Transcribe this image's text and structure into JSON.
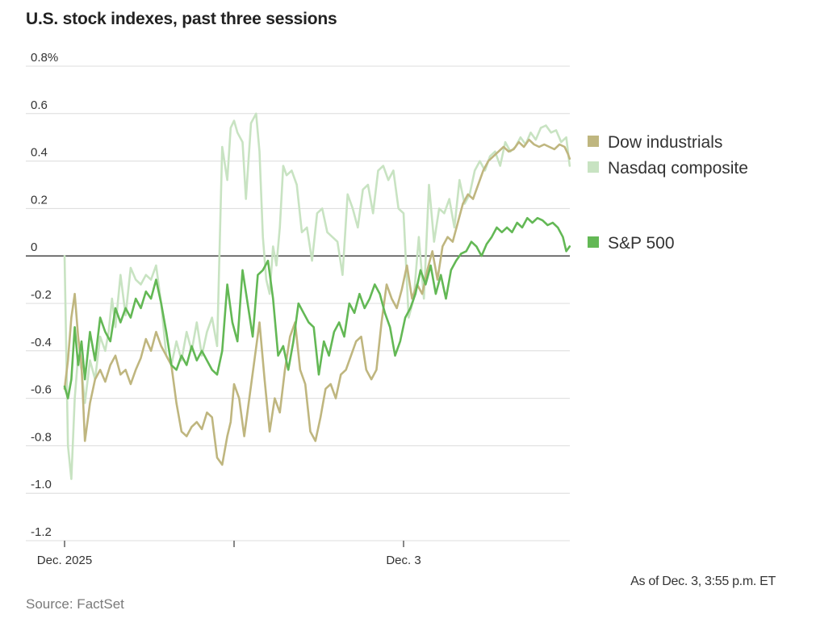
{
  "chart_data": {
    "type": "line",
    "title": "U.S. stock indexes, past three sessions",
    "xlabel": "",
    "ylabel": "",
    "ylim": [
      -1.2,
      0.8
    ],
    "y_ticks": [
      0.8,
      0.6,
      0.4,
      0.2,
      0,
      -0.2,
      -0.4,
      -0.6,
      -0.8,
      -1.0,
      -1.2
    ],
    "y_tick_labels": [
      "0.8%",
      "0.6",
      "0.4",
      "0.2",
      "0",
      "-0.2",
      "-0.4",
      "-0.6",
      "-0.8",
      "-1.0",
      "-1.2"
    ],
    "x_range": [
      0,
      3
    ],
    "x_ticks": [
      0,
      1,
      2
    ],
    "x_tick_labels": [
      "Dec. 2025",
      "",
      "Dec. 3"
    ],
    "grid": true,
    "zero_line": true,
    "legend_position": "right",
    "legend": [
      {
        "name": "Dow industrials",
        "color": "#bfb67f"
      },
      {
        "name": "Nasdaq composite",
        "color": "#c8e3c2"
      },
      {
        "name": "S&P 500",
        "color": "#63b855"
      }
    ],
    "series": [
      {
        "name": "Nasdaq composite",
        "color": "#c8e3c2",
        "x": [
          0,
          0.02,
          0.04,
          0.06,
          0.08,
          0.1,
          0.12,
          0.15,
          0.18,
          0.21,
          0.24,
          0.26,
          0.28,
          0.3,
          0.33,
          0.36,
          0.39,
          0.42,
          0.45,
          0.48,
          0.51,
          0.54,
          0.57,
          0.6,
          0.63,
          0.66,
          0.69,
          0.72,
          0.75,
          0.78,
          0.81,
          0.84,
          0.87,
          0.9,
          0.93,
          0.96,
          0.98,
          1.0,
          1.02,
          1.05,
          1.07,
          1.1,
          1.13,
          1.15,
          1.17,
          1.19,
          1.21,
          1.23,
          1.25,
          1.27,
          1.29,
          1.31,
          1.34,
          1.37,
          1.4,
          1.43,
          1.46,
          1.49,
          1.52,
          1.55,
          1.58,
          1.61,
          1.64,
          1.67,
          1.7,
          1.73,
          1.76,
          1.79,
          1.82,
          1.85,
          1.88,
          1.91,
          1.94,
          1.97,
          2.0,
          2.03,
          2.06,
          2.09,
          2.12,
          2.15,
          2.18,
          2.21,
          2.24,
          2.27,
          2.3,
          2.33,
          2.36,
          2.39,
          2.42,
          2.45,
          2.48,
          2.51,
          2.54,
          2.57,
          2.6,
          2.63,
          2.66,
          2.69,
          2.72,
          2.75,
          2.78,
          2.81,
          2.84,
          2.87,
          2.9,
          2.93,
          2.96,
          2.98
        ],
        "values": [
          0,
          -0.8,
          -0.94,
          -0.6,
          -0.42,
          -0.48,
          -0.62,
          -0.44,
          -0.52,
          -0.34,
          -0.4,
          -0.32,
          -0.18,
          -0.3,
          -0.08,
          -0.25,
          -0.05,
          -0.1,
          -0.12,
          -0.08,
          -0.1,
          -0.04,
          -0.2,
          -0.42,
          -0.46,
          -0.36,
          -0.44,
          -0.32,
          -0.4,
          -0.28,
          -0.42,
          -0.32,
          -0.26,
          -0.38,
          0.46,
          0.32,
          0.54,
          0.57,
          0.52,
          0.48,
          0.24,
          0.56,
          0.6,
          0.44,
          0.08,
          -0.1,
          -0.16,
          0.04,
          -0.04,
          0.12,
          0.38,
          0.34,
          0.36,
          0.3,
          0.1,
          0.12,
          -0.02,
          0.18,
          0.2,
          0.1,
          0.08,
          0.06,
          -0.08,
          0.26,
          0.2,
          0.12,
          0.28,
          0.3,
          0.18,
          0.36,
          0.38,
          0.32,
          0.36,
          0.2,
          0.18,
          -0.26,
          -0.18,
          0.08,
          -0.18,
          0.3,
          0.06,
          0.2,
          0.18,
          0.24,
          0.12,
          0.32,
          0.22,
          0.26,
          0.36,
          0.4,
          0.36,
          0.42,
          0.44,
          0.38,
          0.48,
          0.44,
          0.46,
          0.5,
          0.47,
          0.52,
          0.49,
          0.54,
          0.55,
          0.52,
          0.53,
          0.48,
          0.5,
          0.38
        ]
      },
      {
        "name": "Dow industrials",
        "color": "#bfb67f",
        "x": [
          0,
          0.02,
          0.04,
          0.06,
          0.08,
          0.1,
          0.12,
          0.15,
          0.18,
          0.21,
          0.24,
          0.27,
          0.3,
          0.33,
          0.36,
          0.39,
          0.42,
          0.45,
          0.48,
          0.51,
          0.54,
          0.57,
          0.6,
          0.63,
          0.66,
          0.69,
          0.72,
          0.75,
          0.78,
          0.81,
          0.84,
          0.87,
          0.9,
          0.93,
          0.96,
          0.98,
          1.0,
          1.03,
          1.06,
          1.09,
          1.12,
          1.15,
          1.18,
          1.21,
          1.24,
          1.27,
          1.3,
          1.33,
          1.36,
          1.39,
          1.42,
          1.45,
          1.48,
          1.51,
          1.54,
          1.57,
          1.6,
          1.63,
          1.66,
          1.69,
          1.72,
          1.75,
          1.78,
          1.81,
          1.84,
          1.87,
          1.9,
          1.93,
          1.96,
          1.99,
          2.02,
          2.05,
          2.08,
          2.11,
          2.14,
          2.17,
          2.2,
          2.23,
          2.26,
          2.29,
          2.32,
          2.35,
          2.38,
          2.41,
          2.44,
          2.47,
          2.5,
          2.53,
          2.56,
          2.59,
          2.62,
          2.65,
          2.68,
          2.71,
          2.74,
          2.77,
          2.8,
          2.83,
          2.86,
          2.89,
          2.92,
          2.95,
          2.97,
          2.98
        ],
        "values": [
          -0.56,
          -0.44,
          -0.26,
          -0.16,
          -0.34,
          -0.46,
          -0.78,
          -0.62,
          -0.52,
          -0.48,
          -0.53,
          -0.46,
          -0.42,
          -0.5,
          -0.48,
          -0.54,
          -0.48,
          -0.43,
          -0.35,
          -0.4,
          -0.32,
          -0.38,
          -0.42,
          -0.46,
          -0.62,
          -0.74,
          -0.76,
          -0.72,
          -0.7,
          -0.73,
          -0.66,
          -0.68,
          -0.85,
          -0.88,
          -0.76,
          -0.7,
          -0.54,
          -0.6,
          -0.76,
          -0.6,
          -0.44,
          -0.28,
          -0.52,
          -0.74,
          -0.6,
          -0.66,
          -0.48,
          -0.34,
          -0.28,
          -0.48,
          -0.54,
          -0.74,
          -0.78,
          -0.68,
          -0.56,
          -0.54,
          -0.6,
          -0.5,
          -0.48,
          -0.42,
          -0.36,
          -0.34,
          -0.48,
          -0.52,
          -0.48,
          -0.28,
          -0.12,
          -0.18,
          -0.22,
          -0.14,
          -0.04,
          -0.18,
          -0.12,
          -0.16,
          -0.06,
          0.02,
          -0.1,
          0.04,
          0.08,
          0.06,
          0.14,
          0.22,
          0.26,
          0.24,
          0.3,
          0.36,
          0.4,
          0.42,
          0.44,
          0.46,
          0.44,
          0.45,
          0.48,
          0.46,
          0.49,
          0.47,
          0.46,
          0.47,
          0.46,
          0.45,
          0.47,
          0.46,
          0.43,
          0.41
        ]
      },
      {
        "name": "S&P 500",
        "color": "#63b855",
        "x": [
          0,
          0.02,
          0.04,
          0.06,
          0.08,
          0.1,
          0.12,
          0.15,
          0.18,
          0.21,
          0.24,
          0.27,
          0.3,
          0.33,
          0.36,
          0.39,
          0.42,
          0.45,
          0.48,
          0.51,
          0.54,
          0.57,
          0.6,
          0.63,
          0.66,
          0.69,
          0.72,
          0.75,
          0.78,
          0.81,
          0.84,
          0.87,
          0.9,
          0.93,
          0.96,
          0.99,
          1.02,
          1.05,
          1.08,
          1.11,
          1.14,
          1.17,
          1.2,
          1.23,
          1.26,
          1.29,
          1.32,
          1.35,
          1.38,
          1.41,
          1.44,
          1.47,
          1.5,
          1.53,
          1.56,
          1.59,
          1.62,
          1.65,
          1.68,
          1.71,
          1.74,
          1.77,
          1.8,
          1.83,
          1.86,
          1.89,
          1.92,
          1.95,
          1.98,
          2.01,
          2.04,
          2.07,
          2.1,
          2.13,
          2.16,
          2.19,
          2.22,
          2.25,
          2.28,
          2.31,
          2.34,
          2.37,
          2.4,
          2.43,
          2.46,
          2.49,
          2.52,
          2.55,
          2.58,
          2.61,
          2.64,
          2.67,
          2.7,
          2.73,
          2.76,
          2.79,
          2.82,
          2.85,
          2.88,
          2.91,
          2.94,
          2.96,
          2.98
        ],
        "values": [
          -0.55,
          -0.6,
          -0.52,
          -0.3,
          -0.46,
          -0.36,
          -0.52,
          -0.32,
          -0.44,
          -0.26,
          -0.32,
          -0.36,
          -0.22,
          -0.28,
          -0.22,
          -0.26,
          -0.18,
          -0.22,
          -0.15,
          -0.18,
          -0.1,
          -0.2,
          -0.32,
          -0.46,
          -0.48,
          -0.42,
          -0.46,
          -0.38,
          -0.44,
          -0.4,
          -0.44,
          -0.48,
          -0.5,
          -0.4,
          -0.12,
          -0.28,
          -0.36,
          -0.06,
          -0.2,
          -0.34,
          -0.08,
          -0.06,
          -0.02,
          -0.18,
          -0.42,
          -0.38,
          -0.48,
          -0.36,
          -0.2,
          -0.24,
          -0.28,
          -0.3,
          -0.5,
          -0.36,
          -0.42,
          -0.32,
          -0.28,
          -0.34,
          -0.2,
          -0.24,
          -0.16,
          -0.22,
          -0.18,
          -0.12,
          -0.16,
          -0.24,
          -0.3,
          -0.42,
          -0.36,
          -0.26,
          -0.22,
          -0.16,
          -0.06,
          -0.12,
          -0.04,
          -0.16,
          -0.08,
          -0.18,
          -0.06,
          -0.02,
          0.01,
          0.02,
          0.06,
          0.04,
          0,
          0.05,
          0.08,
          0.12,
          0.1,
          0.12,
          0.1,
          0.14,
          0.12,
          0.16,
          0.14,
          0.16,
          0.15,
          0.13,
          0.14,
          0.12,
          0.08,
          0.02,
          0.04
        ]
      }
    ]
  },
  "footer": {
    "as_of": "As of Dec. 3, 3:55 p.m. ET",
    "source": "Source: FactSet"
  }
}
